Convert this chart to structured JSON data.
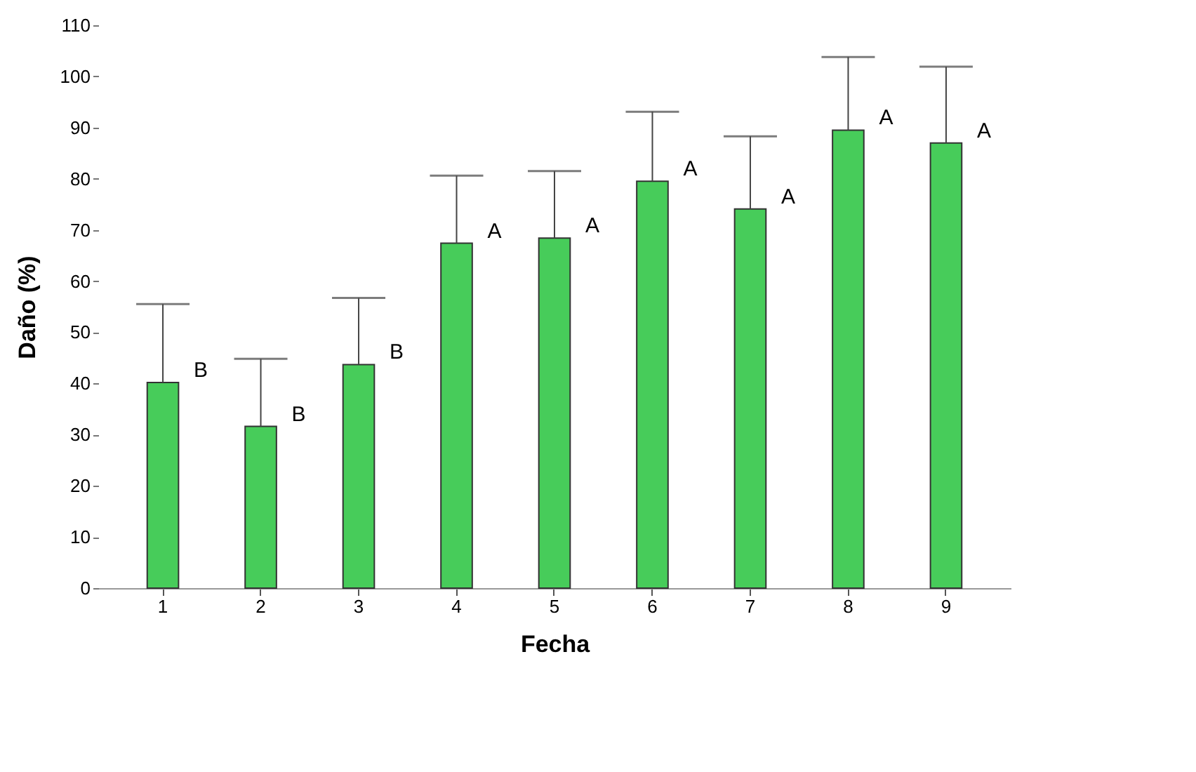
{
  "chart_data": {
    "type": "bar",
    "xlabel": "Fecha",
    "ylabel": "Daño (%)",
    "categories": [
      "1",
      "2",
      "3",
      "4",
      "5",
      "6",
      "7",
      "8",
      "9"
    ],
    "values": [
      40.2,
      31.6,
      43.7,
      67.4,
      68.4,
      79.5,
      74.1,
      89.5,
      87.0
    ],
    "errors": [
      [
        40.2,
        55.5
      ],
      [
        31.6,
        44.8
      ],
      [
        43.7,
        56.7
      ],
      [
        67.4,
        80.6
      ],
      [
        68.4,
        81.5
      ],
      [
        79.5,
        93.1
      ],
      [
        74.1,
        88.3
      ],
      [
        89.5,
        103.8
      ],
      [
        87.0,
        101.9
      ]
    ],
    "color": "#47cc5a",
    "ylim": [
      0,
      110
    ],
    "yticks": [
      0,
      10,
      20,
      30,
      40,
      50,
      60,
      70,
      80,
      90,
      100,
      110
    ],
    "grid": false,
    "annotations": [
      {
        "text": "B",
        "x": "1",
        "y": 40.2
      },
      {
        "text": "B",
        "x": "2",
        "y": 31.6
      },
      {
        "text": "B",
        "x": "3",
        "y": 43.7
      },
      {
        "text": "A",
        "x": "4",
        "y": 67.4
      },
      {
        "text": "A",
        "x": "5",
        "y": 68.4
      },
      {
        "text": "A",
        "x": "6",
        "y": 79.5
      },
      {
        "text": "A",
        "x": "7",
        "y": 74.1
      },
      {
        "text": "A",
        "x": "8",
        "y": 89.5
      },
      {
        "text": "A",
        "x": "9",
        "y": 87.0
      }
    ]
  }
}
